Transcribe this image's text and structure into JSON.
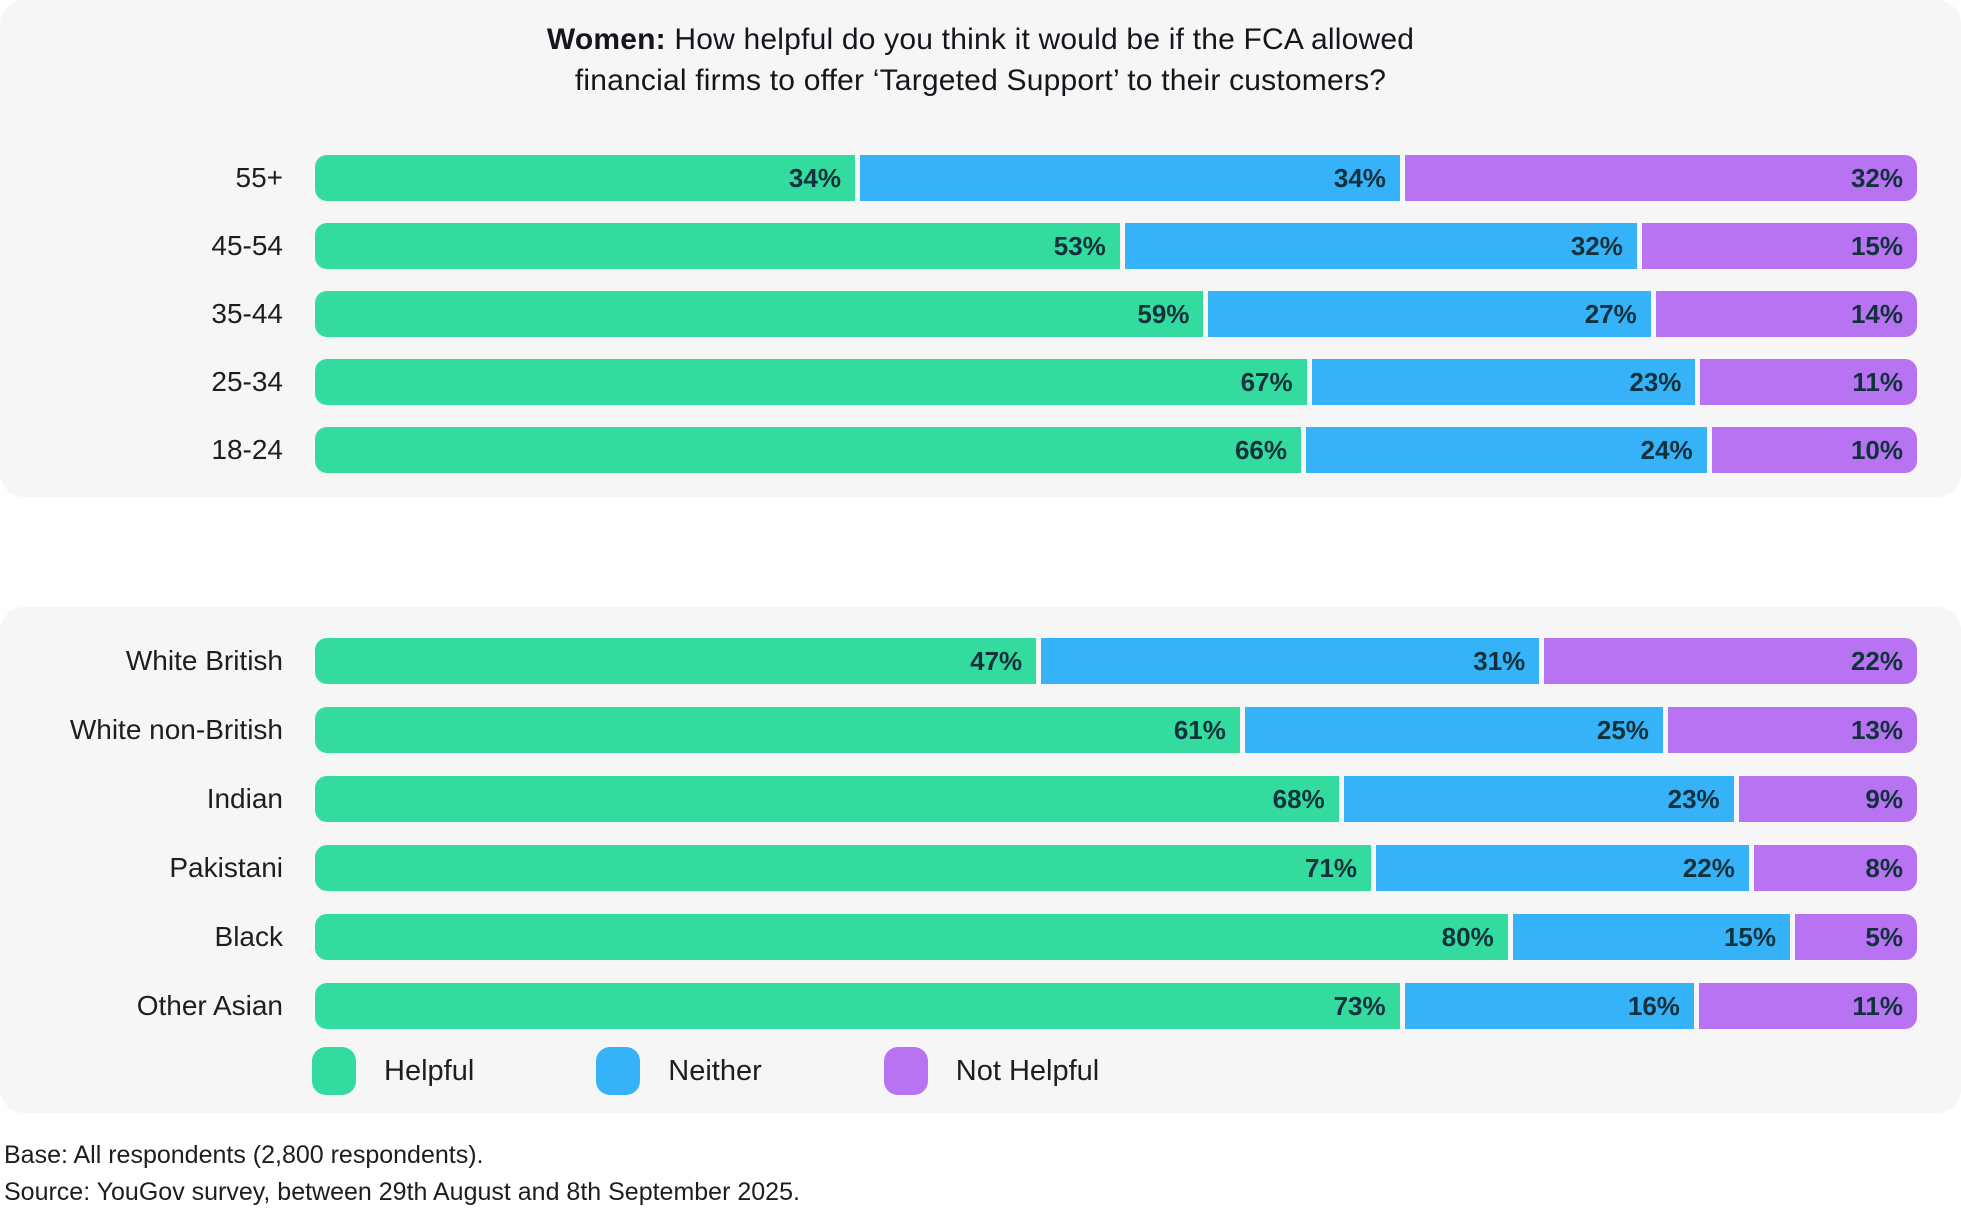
{
  "title": {
    "bold": "Women:",
    "line1_rest": " How helpful do you think it would be if the FCA allowed",
    "line2": "financial firms to offer ‘Targeted Support’ to their customers?"
  },
  "colors": {
    "helpful": "#33dc9e",
    "neither": "#36b3f8",
    "not_helpful": "#b873f3",
    "panel_bg": "#f6f6f7",
    "value_text": "#11323c"
  },
  "legend": [
    {
      "key": "helpful",
      "label": "Helpful"
    },
    {
      "key": "neither",
      "label": "Neither"
    },
    {
      "key": "not_helpful",
      "label": "Not Helpful"
    }
  ],
  "chart_data": [
    {
      "type": "bar",
      "variant": "stacked-horizontal",
      "group": "age",
      "title": "Women: How helpful do you think it would be if the FCA allowed financial firms to offer ‘Targeted Support’ to their customers?",
      "value_suffix": "%",
      "xlim": [
        0,
        100
      ],
      "grid": false,
      "legend_position": "bottom-of-second-panel",
      "categories": [
        "55+",
        "45-54",
        "35-44",
        "25-34",
        "18-24"
      ],
      "series": [
        {
          "name": "Helpful",
          "values": [
            34,
            53,
            59,
            67,
            66
          ]
        },
        {
          "name": "Neither",
          "values": [
            34,
            32,
            27,
            23,
            24
          ]
        },
        {
          "name": "Not Helpful",
          "values": [
            32,
            15,
            14,
            11,
            10
          ]
        }
      ]
    },
    {
      "type": "bar",
      "variant": "stacked-horizontal",
      "group": "ethnicity",
      "value_suffix": "%",
      "xlim": [
        0,
        100
      ],
      "grid": false,
      "categories": [
        "White British",
        "White non-British",
        "Indian",
        "Pakistani",
        "Black",
        "Other Asian"
      ],
      "series": [
        {
          "name": "Helpful",
          "values": [
            47,
            61,
            68,
            71,
            80,
            73
          ]
        },
        {
          "name": "Neither",
          "values": [
            31,
            25,
            23,
            22,
            15,
            16
          ]
        },
        {
          "name": "Not Helpful",
          "values": [
            22,
            13,
            9,
            8,
            5,
            11
          ]
        }
      ]
    }
  ],
  "footer": {
    "base": "Base: All respondents (2,800 respondents).",
    "source": "Source: YouGov survey, between 29th August and 8th September 2025."
  }
}
